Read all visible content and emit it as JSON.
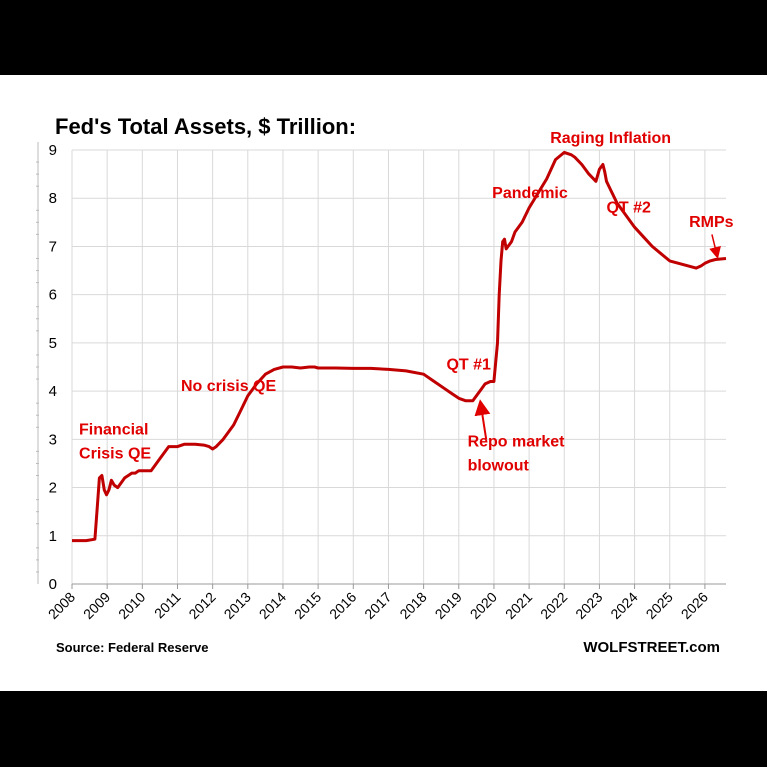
{
  "chart_data": {
    "type": "line",
    "title": "Fed's Total Assets, $ Trillion:",
    "source": "Source: Federal Reserve",
    "brand": "WOLFSTREET.com",
    "ylim": [
      0,
      9
    ],
    "xlim": [
      2008,
      2026.6
    ],
    "yticks": [
      "0",
      "1",
      "2",
      "3",
      "4",
      "5",
      "6",
      "7",
      "8",
      "9"
    ],
    "xticks": [
      "2008",
      "2009",
      "2010",
      "2011",
      "2012",
      "2013",
      "2014",
      "2015",
      "2016",
      "2017",
      "2018",
      "2019",
      "2020",
      "2021",
      "2022",
      "2023",
      "2024",
      "2025",
      "2026"
    ],
    "grid": true,
    "line_color": "#c00000",
    "series": [
      {
        "x": [
          2008.0,
          2008.4,
          2008.65,
          2008.72,
          2008.78,
          2008.85,
          2008.92,
          2008.98,
          2009.05,
          2009.12,
          2009.2,
          2009.3,
          2009.4,
          2009.5,
          2009.6,
          2009.7,
          2009.8,
          2009.9,
          2010.0,
          2010.25,
          2010.5,
          2010.75,
          2010.9,
          2011.0,
          2011.2,
          2011.4,
          2011.5,
          2011.75,
          2011.9,
          2012.0,
          2012.1,
          2012.3,
          2012.6,
          2012.8,
          2013.0,
          2013.25,
          2013.5,
          2013.75,
          2014.0,
          2014.25,
          2014.5,
          2014.75,
          2014.9,
          2015.0,
          2015.5,
          2016.0,
          2016.5,
          2017.0,
          2017.5,
          2018.0,
          2018.3,
          2018.6,
          2018.8,
          2019.0,
          2019.2,
          2019.4,
          2019.55,
          2019.65,
          2019.75,
          2019.9,
          2020.0,
          2020.1,
          2020.15,
          2020.2,
          2020.25,
          2020.3,
          2020.35,
          2020.4,
          2020.45,
          2020.5,
          2020.6,
          2020.8,
          2021.0,
          2021.25,
          2021.5,
          2021.75,
          2022.0,
          2022.2,
          2022.3,
          2022.5,
          2022.7,
          2022.9,
          2023.0,
          2023.1,
          2023.15,
          2023.2,
          2023.3,
          2023.5,
          2023.75,
          2024.0,
          2024.25,
          2024.5,
          2024.75,
          2025.0,
          2025.25,
          2025.5,
          2025.75,
          2025.9,
          2026.0,
          2026.15,
          2026.3,
          2026.6
        ],
        "y": [
          0.9,
          0.9,
          0.93,
          1.6,
          2.2,
          2.25,
          1.95,
          1.85,
          1.95,
          2.15,
          2.05,
          2.0,
          2.1,
          2.2,
          2.25,
          2.3,
          2.3,
          2.35,
          2.35,
          2.35,
          2.6,
          2.85,
          2.85,
          2.85,
          2.9,
          2.9,
          2.9,
          2.88,
          2.85,
          2.8,
          2.85,
          3.0,
          3.3,
          3.6,
          3.9,
          4.15,
          4.35,
          4.45,
          4.5,
          4.5,
          4.48,
          4.5,
          4.5,
          4.48,
          4.48,
          4.47,
          4.47,
          4.45,
          4.42,
          4.35,
          4.2,
          4.05,
          3.95,
          3.85,
          3.8,
          3.8,
          3.95,
          4.05,
          4.15,
          4.2,
          4.2,
          5.0,
          6.0,
          6.7,
          7.1,
          7.15,
          6.95,
          7.0,
          7.05,
          7.1,
          7.3,
          7.5,
          7.8,
          8.1,
          8.4,
          8.8,
          8.95,
          8.9,
          8.85,
          8.7,
          8.5,
          8.35,
          8.6,
          8.7,
          8.55,
          8.35,
          8.2,
          7.9,
          7.65,
          7.4,
          7.2,
          7.0,
          6.85,
          6.7,
          6.65,
          6.6,
          6.55,
          6.6,
          6.65,
          6.7,
          6.73,
          6.75
        ]
      }
    ],
    "annotations": [
      {
        "text": "Financial",
        "x": 2008.2,
        "y": 3.1
      },
      {
        "text": "Crisis QE",
        "x": 2008.2,
        "y": 2.6
      },
      {
        "text": "No crisis QE",
        "x": 2011.1,
        "y": 4.0
      },
      {
        "text": "QT #1",
        "x": 2018.65,
        "y": 4.45
      },
      {
        "text": "Pandemic",
        "x": 2019.95,
        "y": 8.0
      },
      {
        "text": "Raging  Inflation",
        "x": 2021.6,
        "y": 9.15
      },
      {
        "text": "QT #2",
        "x": 2023.2,
        "y": 7.7
      },
      {
        "text": "RMPs",
        "x": 2025.55,
        "y": 7.4
      },
      {
        "text": "Repo market",
        "x": 2019.25,
        "y": 2.85
      },
      {
        "text": "blowout",
        "x": 2019.25,
        "y": 2.35
      }
    ]
  }
}
